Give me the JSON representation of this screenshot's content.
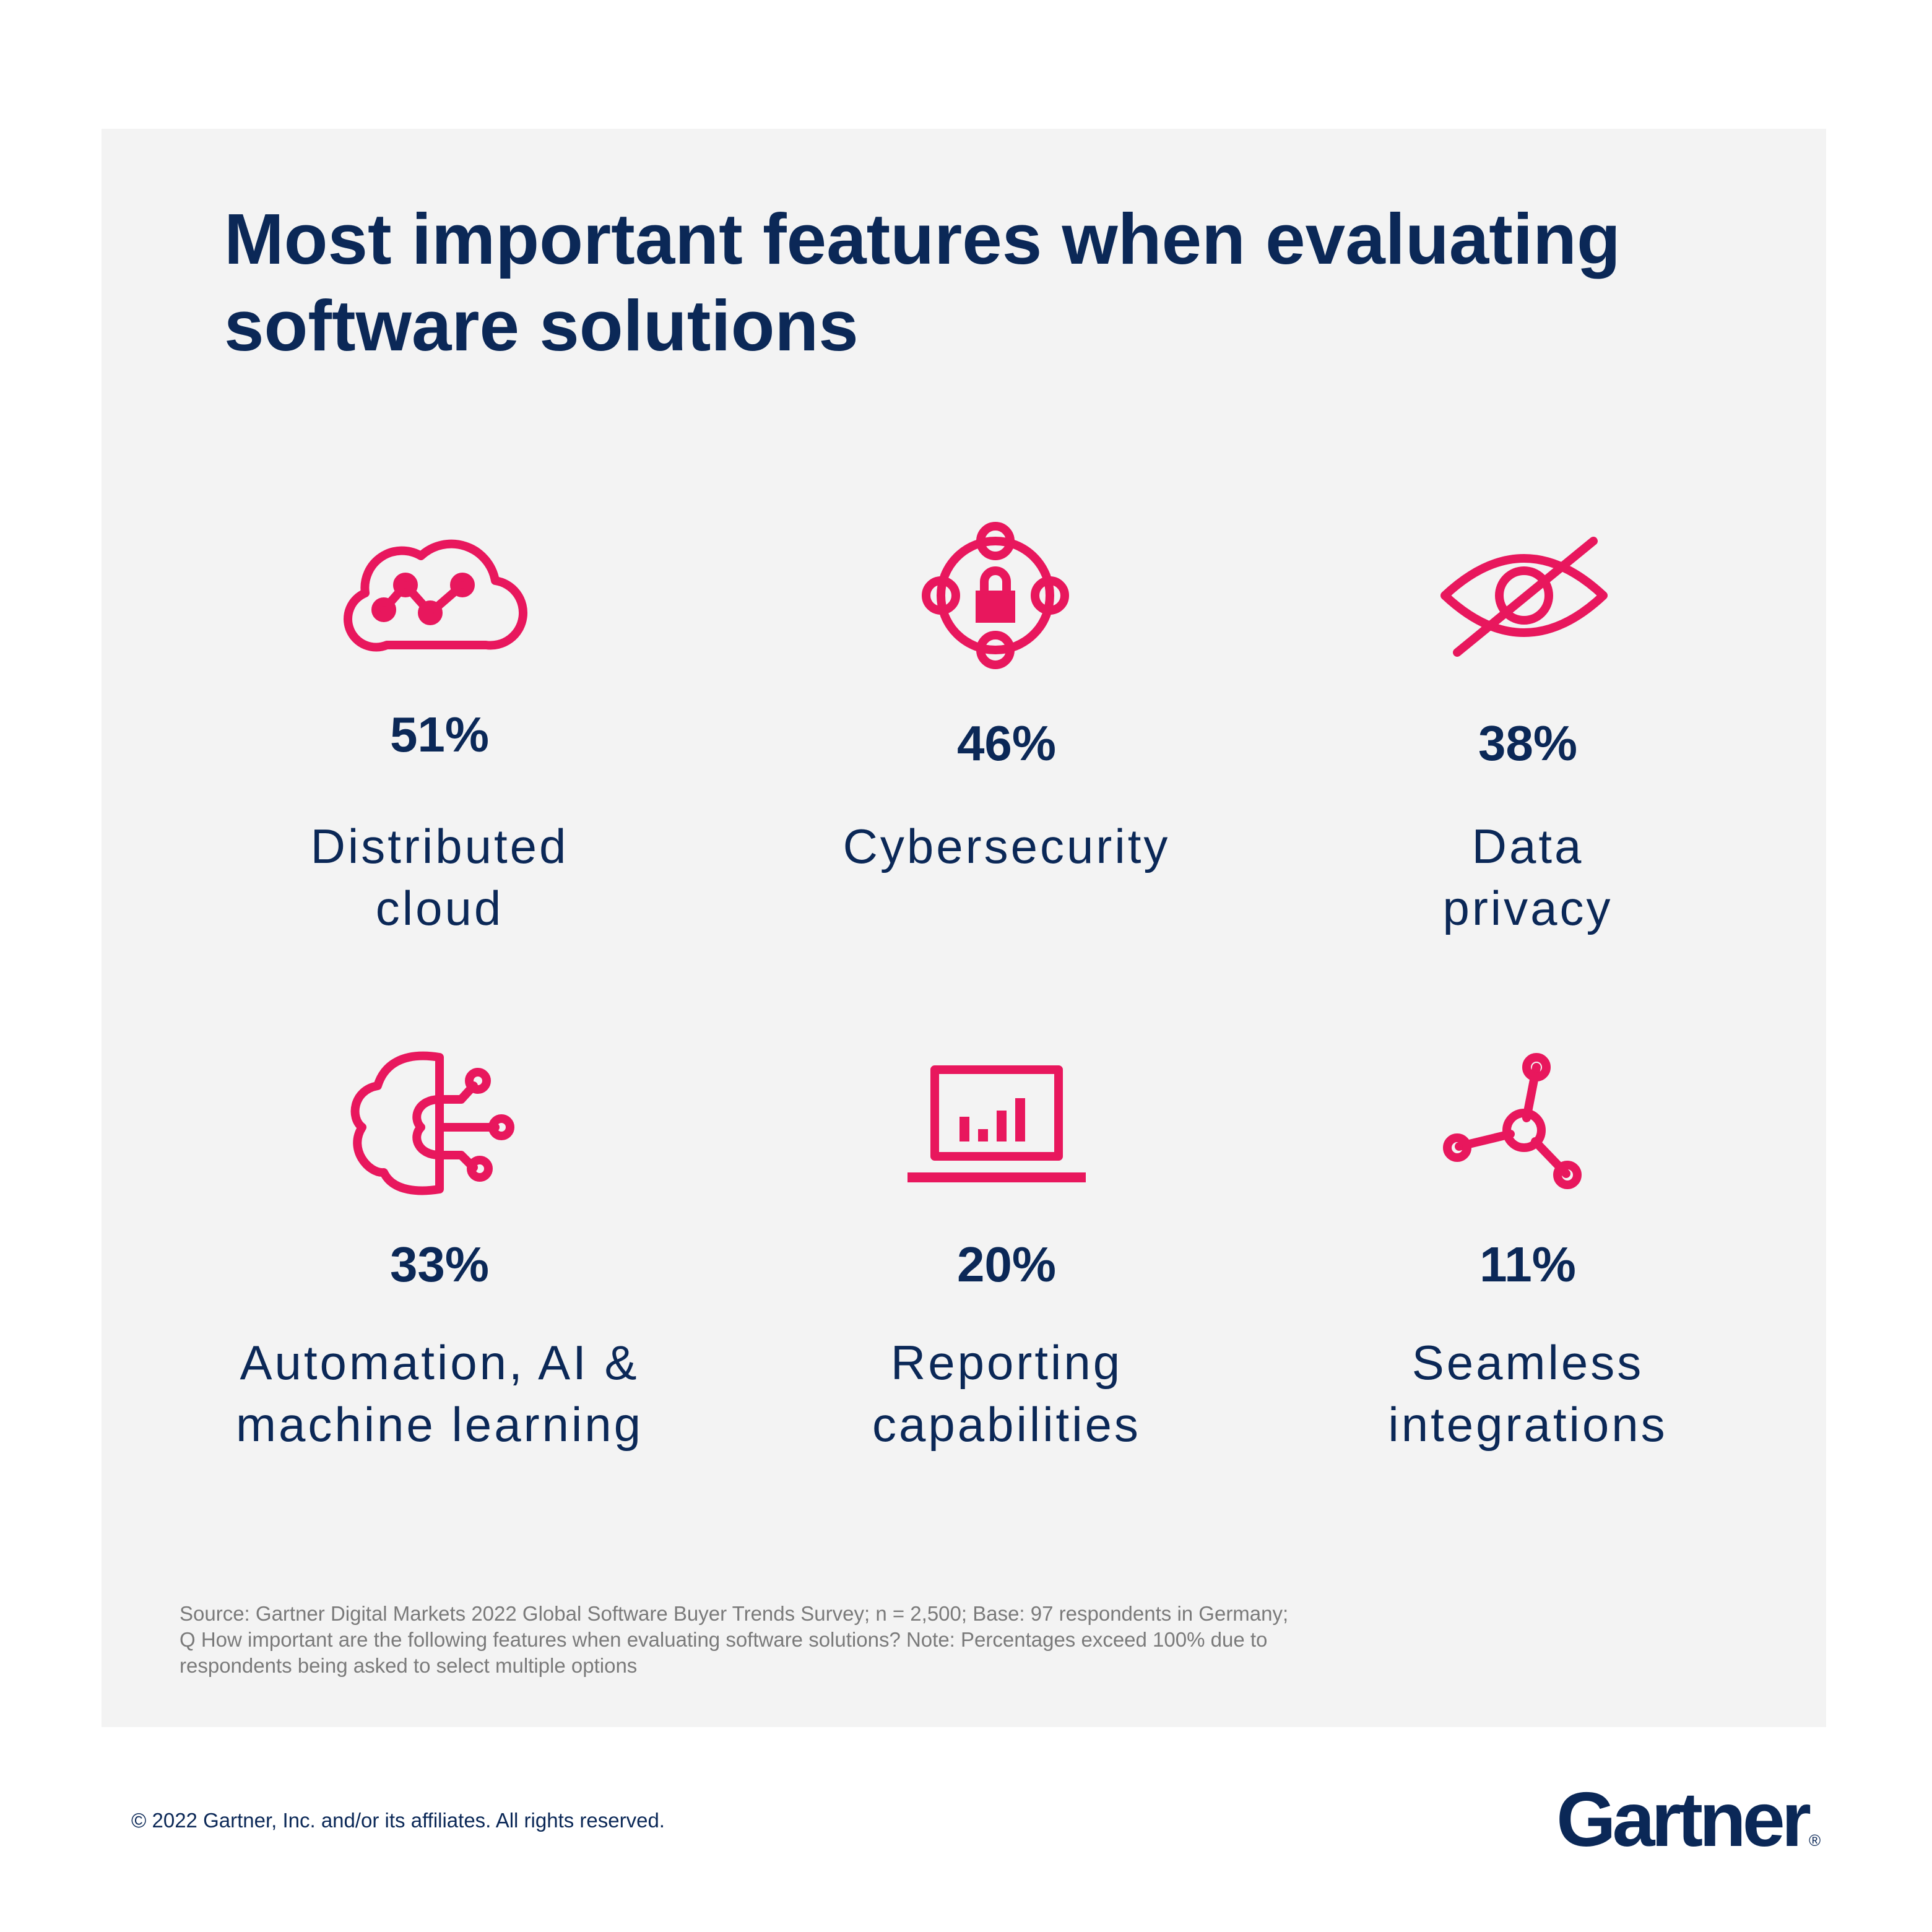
{
  "header": {
    "title": [
      "Most important features when evaluating",
      "software solutions"
    ]
  },
  "items": [
    {
      "value": "51%",
      "label": [
        "Distributed",
        "cloud"
      ]
    },
    {
      "value": "46%",
      "label": [
        "Cybersecurity"
      ]
    },
    {
      "value": "38%",
      "label": [
        "Data",
        "privacy"
      ]
    },
    {
      "value": "33%",
      "label": [
        "Automation, AI &",
        "machine learning"
      ]
    },
    {
      "value": "20%",
      "label": [
        "Reporting",
        "capabilities"
      ]
    },
    {
      "value": "11%",
      "label": [
        "Seamless",
        "integrations"
      ]
    }
  ],
  "footnote": {
    "source": [
      "Source: Gartner Digital Markets 2022 Global Software Buyer Trends Survey; n = 2,500; Base: 97 respondents in Germany;",
      "Q How important are the following features when evaluating software solutions? Note: Percentages exceed 100% due to",
      "respondents being asked to select multiple options"
    ]
  },
  "footer": {
    "copyright": "© 2022 Gartner, Inc. and/or its affiliates. All rights reserved.",
    "logo": "Gartner",
    "logo_mark": "®"
  }
}
